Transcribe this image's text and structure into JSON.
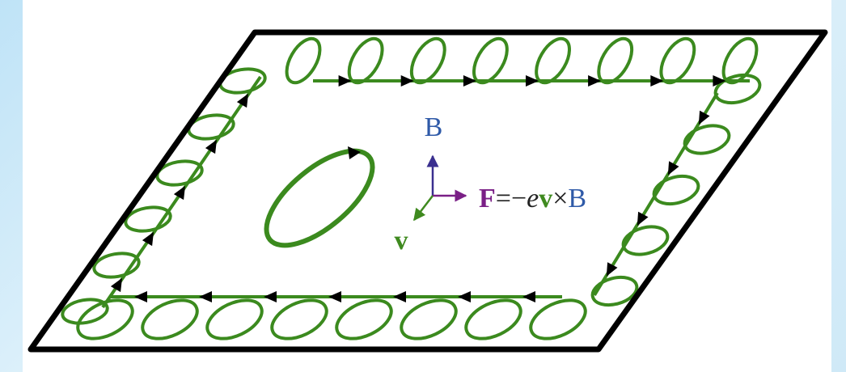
{
  "labels": {
    "b_axis": "B",
    "v_axis": "v",
    "force": [
      "F",
      "=−",
      "e",
      "v",
      "×",
      "B"
    ]
  }
}
